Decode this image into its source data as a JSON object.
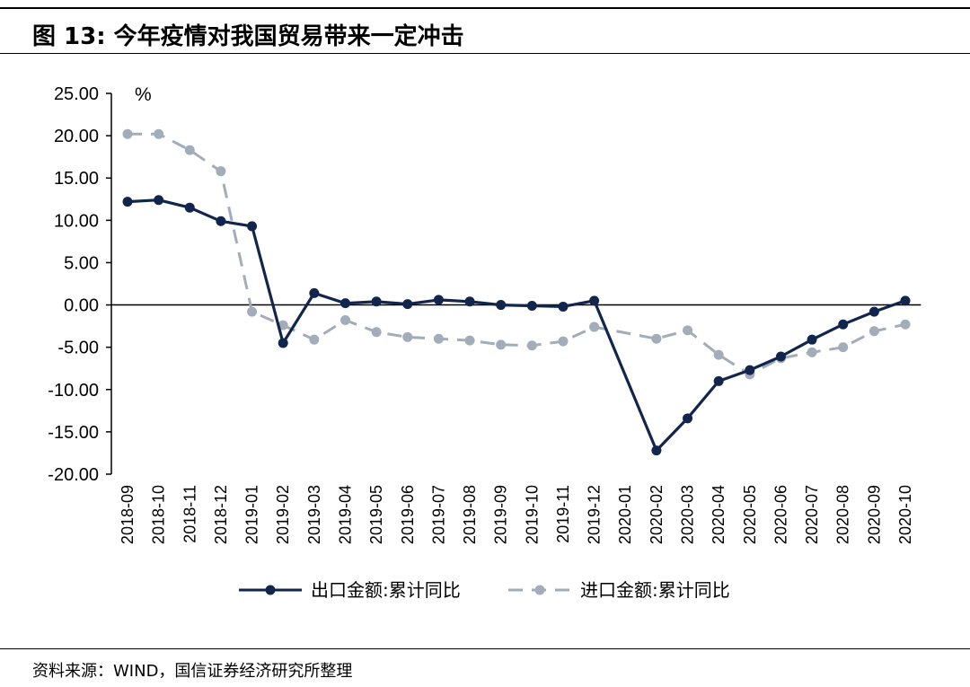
{
  "figure": {
    "title": "图 13:  今年疫情对我国贸易带来一定冲击",
    "source": "资料来源：WIND，国信证券经济研究所整理"
  },
  "chart_data": {
    "type": "line",
    "ylabel": "%",
    "ylim": [
      -20,
      25
    ],
    "ytick_values": [
      25,
      20,
      15,
      10,
      5,
      0,
      -5,
      -10,
      -15,
      -20
    ],
    "ytick_labels": [
      "25.00",
      "20.00",
      "15.00",
      "10.00",
      "5.00",
      "0.00",
      "-5.00",
      "-10.00",
      "-15.00",
      "-20.00"
    ],
    "grid": false,
    "legend_position": "bottom",
    "categories": [
      "2018-09",
      "2018-10",
      "2018-11",
      "2018-12",
      "2019-01",
      "2019-02",
      "2019-03",
      "2019-04",
      "2019-05",
      "2019-06",
      "2019-07",
      "2019-08",
      "2019-09",
      "2019-10",
      "2019-11",
      "2019-12",
      "2020-01",
      "2020-02",
      "2020-03",
      "2020-04",
      "2020-05",
      "2020-06",
      "2020-07",
      "2020-08",
      "2020-09",
      "2020-10"
    ],
    "series": [
      {
        "name": "出口金额:累计同比",
        "style": "solid",
        "color": "#12264d",
        "values": [
          12.2,
          12.4,
          11.5,
          9.9,
          9.3,
          -4.5,
          1.4,
          0.2,
          0.4,
          0.1,
          0.6,
          0.4,
          0.0,
          -0.1,
          -0.2,
          0.5,
          null,
          -17.2,
          -13.4,
          -9.0,
          -7.7,
          -6.1,
          -4.1,
          -2.3,
          -0.8,
          0.5
        ]
      },
      {
        "name": "进口金额:累计同比",
        "style": "dashed",
        "color": "#a3acb9",
        "values": [
          20.2,
          20.2,
          18.3,
          15.8,
          -0.8,
          -2.4,
          -4.1,
          -1.8,
          -3.2,
          -3.8,
          -4.0,
          -4.2,
          -4.7,
          -4.8,
          -4.3,
          -2.6,
          null,
          -4.0,
          -3.0,
          -5.9,
          -8.2,
          -6.3,
          -5.6,
          -5.0,
          -3.1,
          -2.3
        ]
      }
    ]
  }
}
